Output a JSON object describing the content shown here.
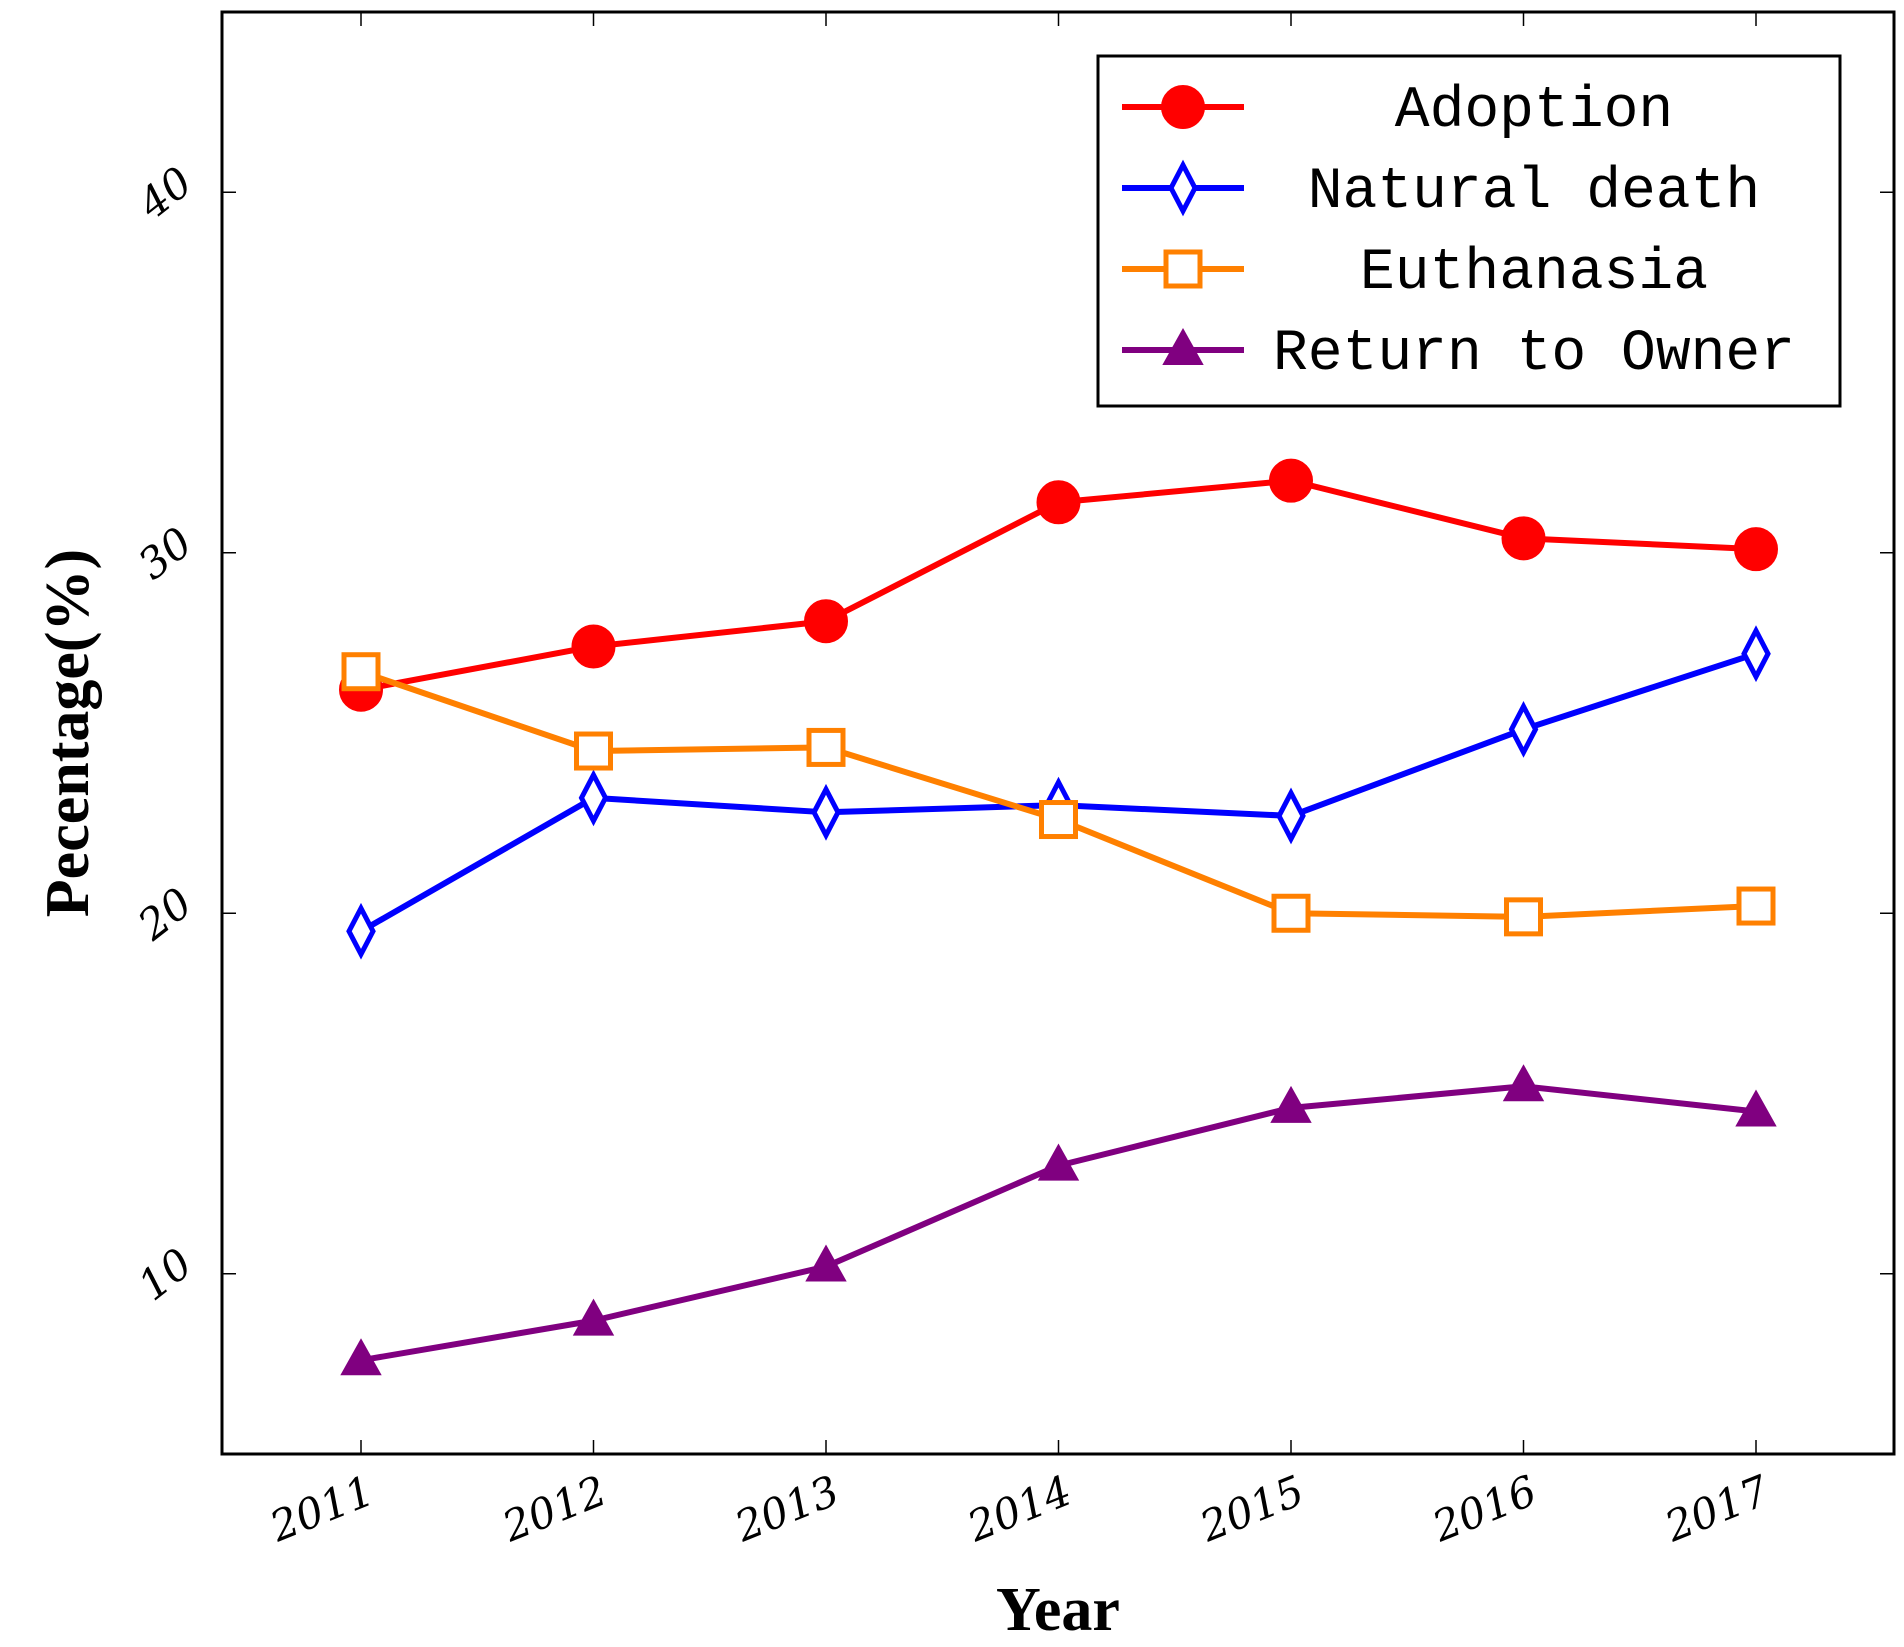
{
  "chart_data": {
    "type": "line",
    "title": "",
    "xlabel": "Year",
    "ylabel": "Pecentage(%)",
    "categories": [
      "2011",
      "2012",
      "2013",
      "2014",
      "2015",
      "2016",
      "2017"
    ],
    "ylim": [
      5,
      45
    ],
    "yticks": [
      10,
      20,
      30,
      40
    ],
    "grid": false,
    "legend_position": "top-right",
    "series": [
      {
        "name": "Adoption",
        "color": "#ff0000",
        "marker": "circle",
        "values": [
          26.2,
          27.4,
          28.1,
          31.4,
          32.0,
          30.4,
          30.1
        ]
      },
      {
        "name": "Natural death",
        "color": "#0000ff",
        "marker": "diamond",
        "values": [
          19.5,
          23.2,
          22.8,
          23.0,
          22.7,
          25.1,
          27.2
        ]
      },
      {
        "name": "Euthanasia",
        "color": "#ff8000",
        "marker": "square",
        "values": [
          26.7,
          24.5,
          24.6,
          22.6,
          20.0,
          19.9,
          20.2
        ]
      },
      {
        "name": "Return to Owner",
        "color": "#800080",
        "marker": "triangle",
        "values": [
          7.6,
          8.7,
          10.2,
          13.0,
          14.6,
          15.2,
          14.5
        ]
      }
    ]
  }
}
